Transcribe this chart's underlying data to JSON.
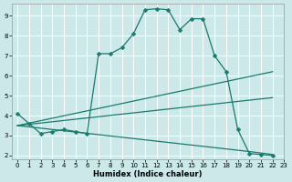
{
  "xlabel": "Humidex (Indice chaleur)",
  "xlim": [
    -0.5,
    23
  ],
  "ylim": [
    1.8,
    9.6
  ],
  "yticks": [
    2,
    3,
    4,
    5,
    6,
    7,
    8,
    9
  ],
  "xticks": [
    0,
    1,
    2,
    3,
    4,
    5,
    6,
    7,
    8,
    9,
    10,
    11,
    12,
    13,
    14,
    15,
    16,
    17,
    18,
    19,
    20,
    21,
    22,
    23
  ],
  "bg_color": "#cce8e8",
  "line_color": "#1a7a6e",
  "grid_color": "#ffffff",
  "line1_x": [
    0,
    1,
    2,
    3,
    4,
    5,
    6,
    7,
    8,
    9,
    10,
    11,
    12,
    13,
    14,
    15,
    16,
    17,
    18,
    19,
    20,
    21,
    22
  ],
  "line1_y": [
    4.1,
    3.6,
    3.1,
    3.2,
    3.3,
    3.2,
    3.1,
    7.1,
    7.1,
    7.4,
    8.1,
    9.3,
    9.35,
    9.3,
    8.3,
    8.85,
    8.85,
    7.0,
    6.2,
    3.3,
    2.1,
    2.05,
    2.0
  ],
  "line2_x": [
    0,
    22
  ],
  "line2_y": [
    3.5,
    6.2
  ],
  "line3_x": [
    0,
    22
  ],
  "line3_y": [
    3.5,
    4.9
  ],
  "line4_x": [
    0,
    20,
    22
  ],
  "line4_y": [
    3.5,
    2.2,
    2.05
  ]
}
